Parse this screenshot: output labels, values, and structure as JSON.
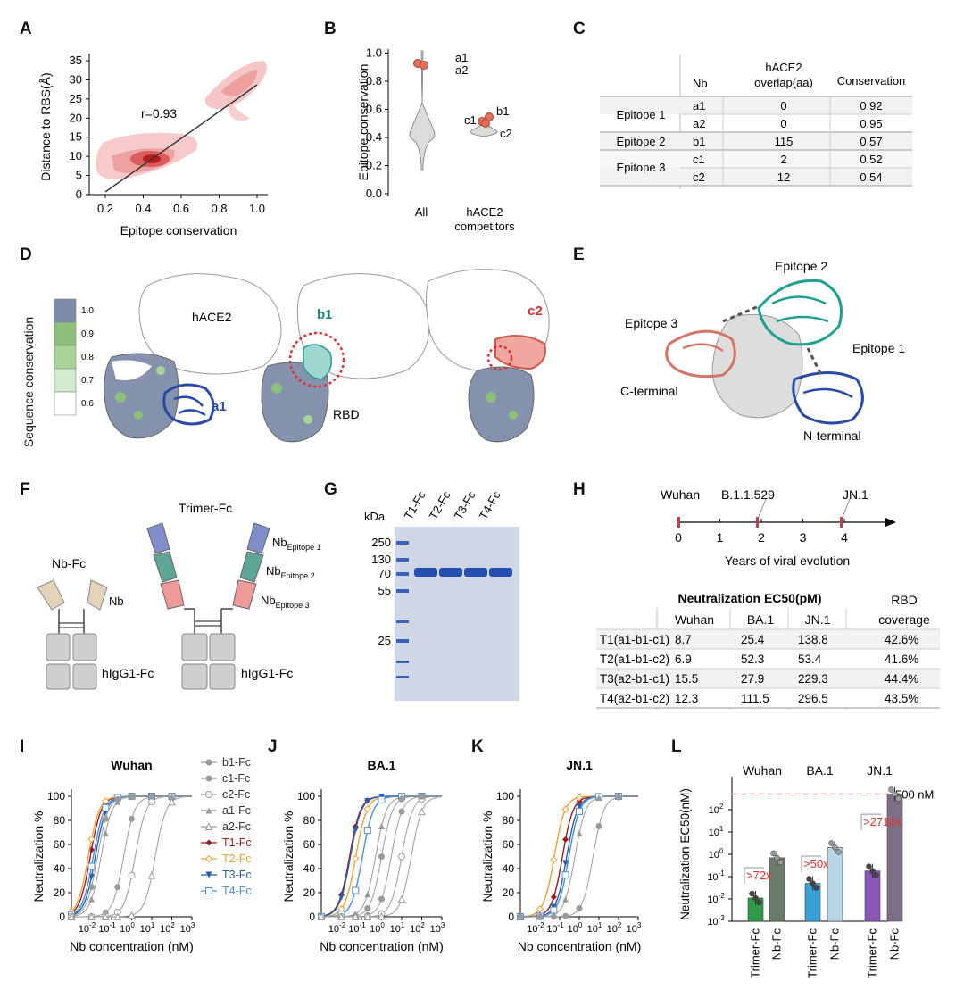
{
  "letters": [
    "A",
    "B",
    "C",
    "D",
    "E",
    "F",
    "G",
    "H",
    "I",
    "J",
    "K",
    "L"
  ],
  "panelA": {
    "xlabel": "Epitope conservation",
    "ylabel": "Distance to RBS(Å)",
    "xticks": [
      "0.2",
      "0.4",
      "0.6",
      "0.8",
      "1.0"
    ],
    "yticks": [
      "0",
      "5",
      "10",
      "15",
      "20",
      "25",
      "30",
      "35"
    ],
    "annotation": "r=0.93"
  },
  "panelB": {
    "ylabel": "Epitope conservation",
    "yticks": [
      "0.0",
      "0.2",
      "0.4",
      "0.6",
      "0.8",
      "1.0"
    ],
    "groups": [
      "All",
      "hACE2",
      "competitors"
    ],
    "points": {
      "a1": "a1",
      "a2": "a2",
      "b1": "b1",
      "c1": "c1",
      "c2": "c2"
    }
  },
  "panelC": {
    "headers": [
      "Nb",
      "hACE2",
      "overlap(aa)",
      "Conservation"
    ],
    "groups": [
      "Epitope 1",
      "Epitope 2",
      "Epitope 3"
    ],
    "rows": [
      [
        "a1",
        "0",
        "0.92"
      ],
      [
        "a2",
        "0",
        "0.95"
      ],
      [
        "b1",
        "115",
        "0.57"
      ],
      [
        "c1",
        "2",
        "0.52"
      ],
      [
        "c2",
        "12",
        "0.54"
      ]
    ]
  },
  "panelD": {
    "legend_title": "Sequence conservation",
    "legend_ticks": [
      "1.0",
      "0.9",
      "0.8",
      "0.7",
      "0.6"
    ],
    "legend_colors": [
      "#7b8aa8",
      "#8cbf7a",
      "#a8d497",
      "#d2ead0",
      "#ffffff"
    ],
    "labels": {
      "hace2": "hACE2",
      "a1": "a1",
      "b1": "b1",
      "c2": "c2",
      "rbd": "RBD"
    }
  },
  "panelE": {
    "labels": [
      "Epitope 2",
      "Epitope 3",
      "Epitope 1",
      "C-terminal",
      "N-terminal"
    ]
  },
  "panelF": {
    "nbfc": "Nb-Fc",
    "nb": "Nb",
    "hfc1": "hIgG1-Fc",
    "trimer": "Trimer-Fc",
    "nb_base": "Nb",
    "sub1": "Epitope 1",
    "sub2": "Epitope 2",
    "sub3": "Epitope 3",
    "hfc2": "hIgG1-Fc"
  },
  "panelG": {
    "kda": "kDa",
    "lanes": [
      "T1-Fc",
      "T2-Fc",
      "T3-Fc",
      "T4-Fc"
    ],
    "markers": [
      "250",
      "130",
      "70",
      "55",
      "25"
    ]
  },
  "panelH": {
    "timeline": {
      "ticks": [
        "0",
        "1",
        "2",
        "3",
        "4"
      ],
      "events": [
        "Wuhan",
        "B.1.1.529",
        "JN.1"
      ],
      "label": "Years of viral evolution"
    },
    "table_title": "Neutralization EC50(pM)",
    "rbd_header": "RBD",
    "cols": [
      "Wuhan",
      "BA.1",
      "JN.1",
      "coverage"
    ],
    "rows": [
      [
        "T1(a1-b1-c1)",
        "8.7",
        "25.4",
        "138.8",
        "42.6%"
      ],
      [
        "T2(a1-b1-c2)",
        "6.9",
        "52.3",
        "53.4",
        "41.6%"
      ],
      [
        "T3(a2-b1-c1)",
        "15.5",
        "27.9",
        "229.3",
        "44.4%"
      ],
      [
        "T4(a2-b1-c2)",
        "12.3",
        "111.5",
        "296.5",
        "43.5%"
      ]
    ]
  },
  "curves": {
    "ylabel": "Neutralization %",
    "xlabel": "Nb concentration (nM)",
    "yticks": [
      "0",
      "20",
      "40",
      "60",
      "80",
      "100"
    ],
    "titles": [
      "Wuhan",
      "BA.1",
      "JN.1"
    ],
    "legend": [
      "b1-Fc",
      "c1-Fc",
      "c2-Fc",
      "a1-Fc",
      "a2-Fc",
      "T1-Fc",
      "T2-Fc",
      "T3-Fc",
      "T4-Fc"
    ],
    "colors": {
      "T1": "#9b1b1b",
      "T2": "#f0a030",
      "T3": "#2a5ea8",
      "T4": "#4a90d9",
      "grey": "#9a9a9a"
    }
  },
  "panelL": {
    "ylabel": "Neutralization EC50(nM)",
    "groups": [
      "Wuhan",
      "BA.1",
      "JN.1"
    ],
    "fold": [
      ">72x",
      ">50x",
      ">2716x"
    ],
    "ref": "500 nM",
    "xlabels": [
      "Trimer-Fc",
      "Nb-Fc",
      "Trimer-Fc",
      "Nb-Fc",
      "Trimer-Fc",
      "Nb-Fc"
    ],
    "bar_colors": [
      "#2e9a4a",
      "#6a7d6a",
      "#3aa0d8",
      "#b7d6e6",
      "#8a56b8",
      "#7e6f86"
    ]
  },
  "chart_data": [
    {
      "type": "scatter",
      "xlabel": "Epitope conservation",
      "ylabel": "Distance to RBS(Å)",
      "xlim": [
        0.2,
        1.0
      ],
      "ylim": [
        0,
        35
      ],
      "annotation": "r=0.93",
      "fit_line": {
        "x": [
          0.25,
          0.97
        ],
        "y": [
          0.5,
          30
        ]
      }
    },
    {
      "type": "table",
      "title": "Neutralization EC50(pM)",
      "columns": [
        "Wuhan",
        "BA.1",
        "JN.1",
        "RBD coverage"
      ],
      "rows": {
        "T1(a1-b1-c1)": [
          8.7,
          25.4,
          138.8,
          42.6
        ],
        "T2(a1-b1-c2)": [
          6.9,
          52.3,
          53.4,
          41.6
        ],
        "T3(a2-b1-c1)": [
          15.5,
          27.9,
          229.3,
          44.4
        ],
        "T4(a2-b1-c2)": [
          12.3,
          111.5,
          296.5,
          43.5
        ]
      }
    },
    {
      "type": "line",
      "title": "Wuhan",
      "xlabel": "Nb concentration (nM)",
      "ylabel": "Neutralization %",
      "xscale": "log",
      "xlim": [
        0.001,
        1000
      ],
      "ylim": [
        0,
        100
      ],
      "series": [
        {
          "name": "T1-Fc",
          "ec50": 0.0087
        },
        {
          "name": "T2-Fc",
          "ec50": 0.0069
        },
        {
          "name": "T3-Fc",
          "ec50": 0.0155
        },
        {
          "name": "T4-Fc",
          "ec50": 0.0123
        },
        {
          "name": "b1-Fc",
          "ec50": 0.02
        },
        {
          "name": "c1-Fc",
          "ec50": 0.4
        },
        {
          "name": "c2-Fc",
          "ec50": 1.5
        },
        {
          "name": "a1-Fc",
          "ec50": 0.03
        },
        {
          "name": "a2-Fc",
          "ec50": 15
        }
      ]
    },
    {
      "type": "line",
      "title": "BA.1",
      "xlabel": "Nb concentration (nM)",
      "ylabel": "Neutralization %",
      "xscale": "log",
      "xlim": [
        0.001,
        1000
      ],
      "ylim": [
        0,
        100
      ],
      "series": [
        {
          "name": "T1-Fc",
          "ec50": 0.0254
        },
        {
          "name": "T2-Fc",
          "ec50": 0.0523
        },
        {
          "name": "T3-Fc",
          "ec50": 0.0279
        },
        {
          "name": "T4-Fc",
          "ec50": 0.1115
        },
        {
          "name": "b1-Fc",
          "ec50": 1
        },
        {
          "name": "c1-Fc",
          "ec50": 3
        },
        {
          "name": "c2-Fc",
          "ec50": 10
        },
        {
          "name": "a1-Fc",
          "ec50": 0.5
        },
        {
          "name": "a2-Fc",
          "ec50": 30
        }
      ]
    },
    {
      "type": "line",
      "title": "JN.1",
      "xlabel": "Nb concentration (nM)",
      "ylabel": "Neutralization %",
      "xscale": "log",
      "xlim": [
        0.001,
        1000
      ],
      "ylim": [
        0,
        100
      ],
      "series": [
        {
          "name": "T1-Fc",
          "ec50": 0.1388
        },
        {
          "name": "T2-Fc",
          "ec50": 0.0534
        },
        {
          "name": "T3-Fc",
          "ec50": 0.2293
        },
        {
          "name": "T4-Fc",
          "ec50": 0.2965
        },
        {
          "name": "a1-Fc",
          "ec50": 0.6
        },
        {
          "name": "c1-Fc",
          "ec50": 5
        }
      ]
    },
    {
      "type": "bar",
      "ylabel": "Neutralization EC50(nM)",
      "yscale": "log",
      "ylim": [
        0.001,
        1000
      ],
      "categories": [
        "Trimer-Fc",
        "Nb-Fc",
        "Trimer-Fc",
        "Nb-Fc",
        "Trimer-Fc",
        "Nb-Fc"
      ],
      "groups": [
        "Wuhan",
        "Wuhan",
        "BA.1",
        "BA.1",
        "JN.1",
        "JN.1"
      ],
      "values": [
        0.011,
        0.7,
        0.05,
        2,
        0.18,
        500
      ],
      "reference_line": 500,
      "fold_changes": [
        ">72x",
        ">50x",
        ">2716x"
      ]
    }
  ]
}
